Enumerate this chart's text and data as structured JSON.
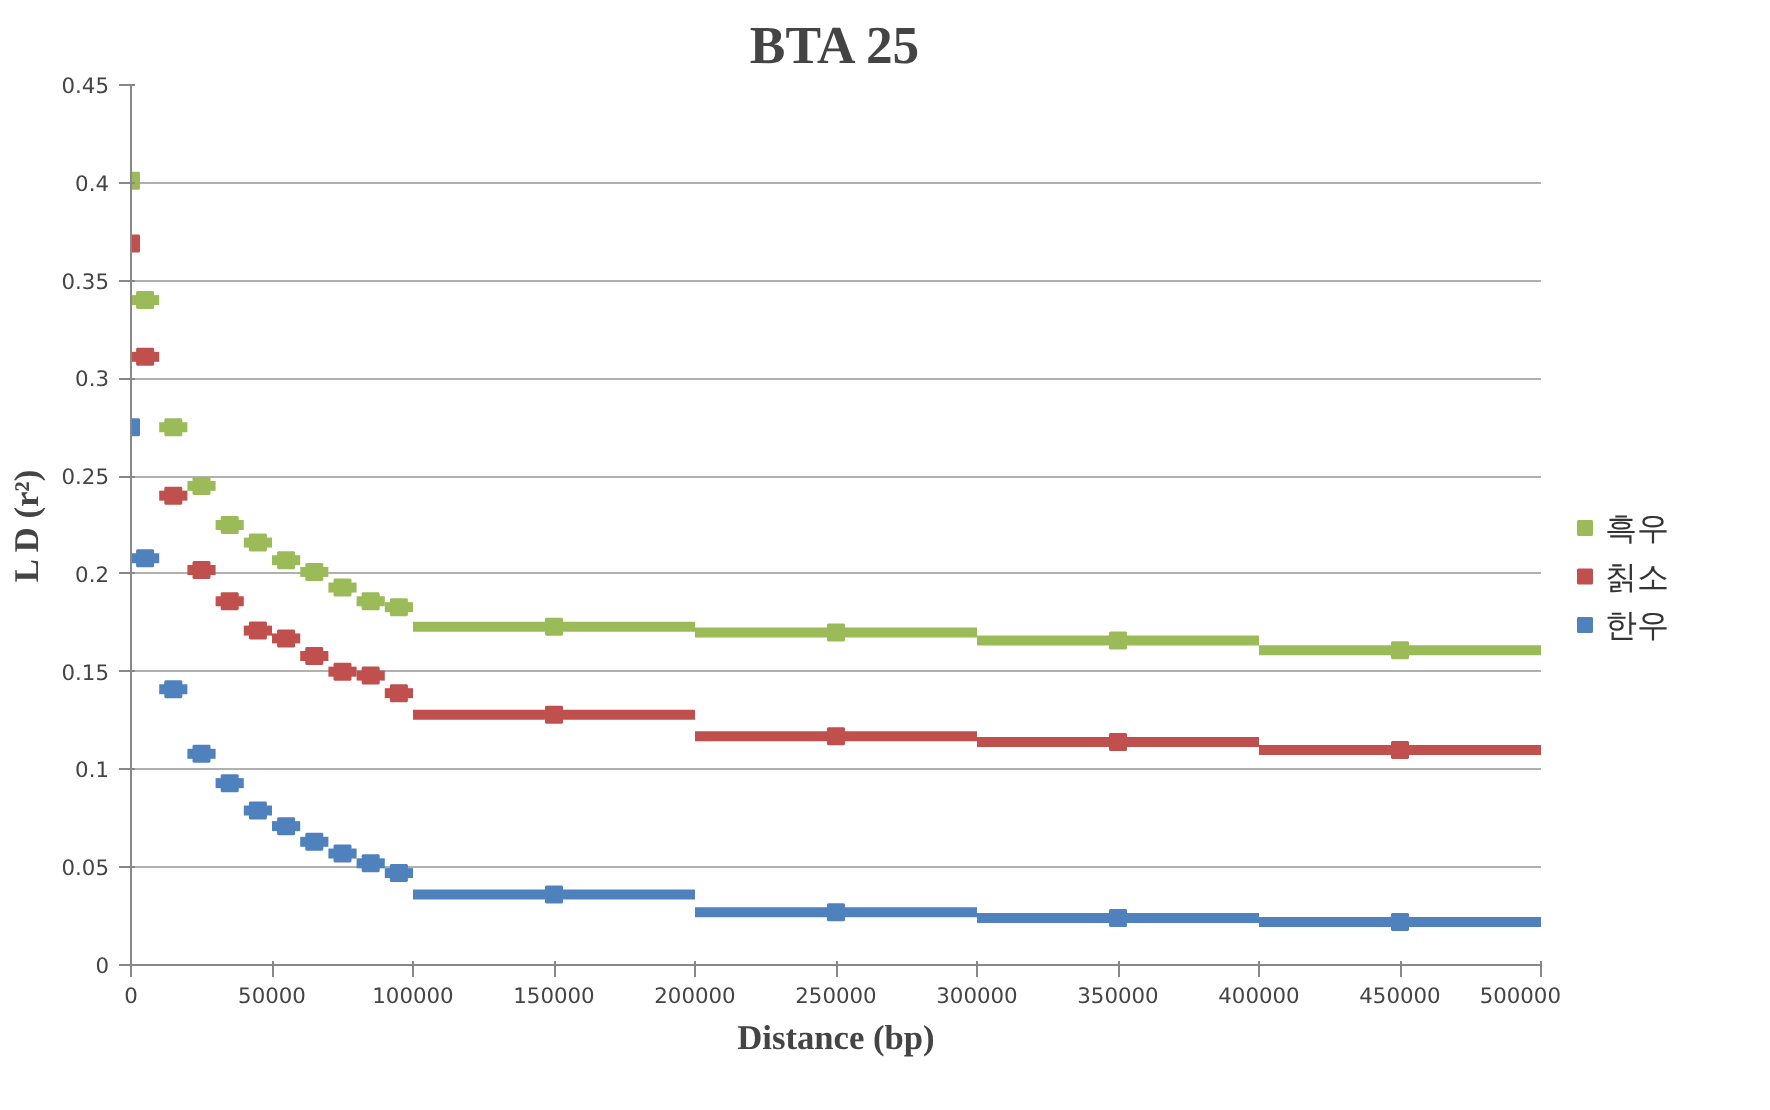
{
  "chart_data": {
    "type": "scatter",
    "title": "BTA 25",
    "xlabel": "Distance (bp)",
    "ylabel": "L D (r²)",
    "x": [
      0,
      5000,
      15000,
      25000,
      35000,
      45000,
      55000,
      65000,
      75000,
      85000,
      95000,
      150000,
      250000,
      350000,
      450000
    ],
    "series": [
      {
        "name": "흑우",
        "color": "#9bbb59",
        "values": [
          0.401,
          0.34,
          0.275,
          0.245,
          0.225,
          0.216,
          0.207,
          0.201,
          0.193,
          0.186,
          0.183,
          0.173,
          0.17,
          0.166,
          0.161
        ],
        "xerrors": [
          null,
          5000,
          5000,
          5000,
          5000,
          5000,
          5000,
          5000,
          5000,
          5000,
          5000,
          50000,
          50000,
          50000,
          50000
        ]
      },
      {
        "name": "칡소",
        "color": "#c0504d",
        "values": [
          0.369,
          0.311,
          0.24,
          0.202,
          0.186,
          0.171,
          0.167,
          0.158,
          0.15,
          0.148,
          0.139,
          0.128,
          0.117,
          0.114,
          0.11
        ],
        "xerrors": [
          null,
          5000,
          5000,
          5000,
          5000,
          5000,
          5000,
          5000,
          5000,
          5000,
          5000,
          50000,
          50000,
          50000,
          50000
        ]
      },
      {
        "name": "한우",
        "color": "#4f81bd",
        "values": [
          0.275,
          0.208,
          0.141,
          0.108,
          0.093,
          0.079,
          0.071,
          0.063,
          0.057,
          0.052,
          0.047,
          0.036,
          0.027,
          0.024,
          0.022
        ],
        "xerrors": [
          null,
          5000,
          5000,
          5000,
          5000,
          5000,
          5000,
          5000,
          5000,
          5000,
          5000,
          50000,
          50000,
          50000,
          50000
        ]
      }
    ],
    "xlim": [
      0,
      500000
    ],
    "xticks": [
      0,
      50000,
      100000,
      150000,
      200000,
      250000,
      300000,
      350000,
      400000,
      450000,
      500000
    ],
    "ylim": [
      0,
      0.45
    ],
    "yticks": [
      0,
      0.05,
      0.1,
      0.15,
      0.2,
      0.25,
      0.3,
      0.35,
      0.4,
      0.45
    ],
    "grid": "y",
    "legend": "right",
    "marker": "square"
  }
}
